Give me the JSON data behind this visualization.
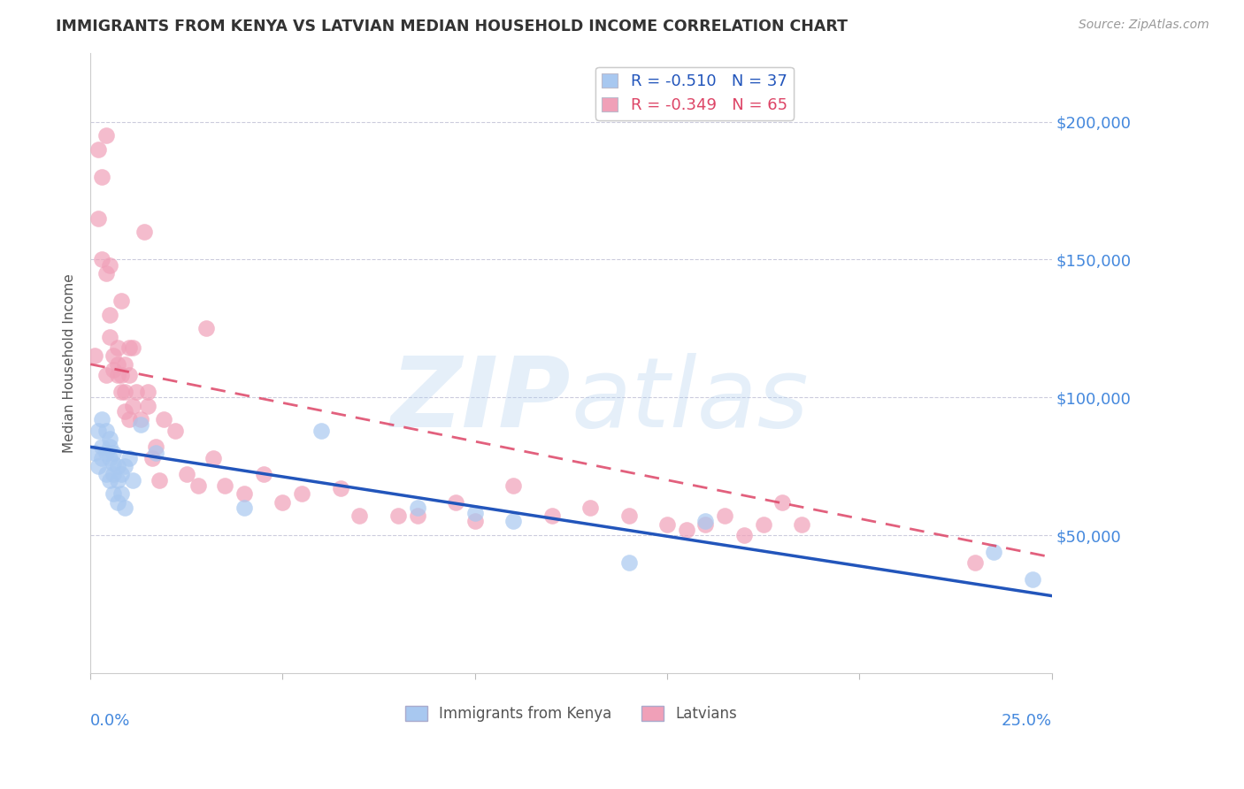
{
  "title": "IMMIGRANTS FROM KENYA VS LATVIAN MEDIAN HOUSEHOLD INCOME CORRELATION CHART",
  "source": "Source: ZipAtlas.com",
  "ylabel": "Median Household Income",
  "right_ytick_values": [
    50000,
    100000,
    150000,
    200000
  ],
  "watermark_zip": "ZIP",
  "watermark_atlas": "atlas",
  "legend_blue_r": "-0.510",
  "legend_blue_n": "37",
  "legend_pink_r": "-0.349",
  "legend_pink_n": "65",
  "legend_label_blue": "Immigrants from Kenya",
  "legend_label_pink": "Latvians",
  "blue_color": "#A8C8F0",
  "pink_color": "#F0A0B8",
  "trendline_blue_color": "#2255BB",
  "trendline_pink_color": "#DD4466",
  "background_color": "#FFFFFF",
  "grid_color": "#CCCCDD",
  "xlim": [
    0,
    0.25
  ],
  "ylim": [
    0,
    225000
  ],
  "blue_x": [
    0.001,
    0.002,
    0.002,
    0.003,
    0.003,
    0.003,
    0.004,
    0.004,
    0.004,
    0.005,
    0.005,
    0.005,
    0.005,
    0.006,
    0.006,
    0.006,
    0.006,
    0.007,
    0.007,
    0.007,
    0.008,
    0.008,
    0.009,
    0.009,
    0.01,
    0.011,
    0.013,
    0.017,
    0.04,
    0.06,
    0.085,
    0.1,
    0.11,
    0.14,
    0.16,
    0.235,
    0.245
  ],
  "blue_y": [
    80000,
    88000,
    75000,
    92000,
    82000,
    78000,
    88000,
    80000,
    72000,
    85000,
    78000,
    82000,
    70000,
    80000,
    76000,
    72000,
    65000,
    75000,
    70000,
    62000,
    72000,
    65000,
    75000,
    60000,
    78000,
    70000,
    90000,
    80000,
    60000,
    88000,
    60000,
    58000,
    55000,
    40000,
    55000,
    44000,
    34000
  ],
  "pink_x": [
    0.001,
    0.002,
    0.002,
    0.003,
    0.003,
    0.004,
    0.004,
    0.004,
    0.005,
    0.005,
    0.005,
    0.006,
    0.006,
    0.007,
    0.007,
    0.007,
    0.008,
    0.008,
    0.008,
    0.009,
    0.009,
    0.009,
    0.01,
    0.01,
    0.01,
    0.011,
    0.011,
    0.012,
    0.013,
    0.014,
    0.015,
    0.015,
    0.016,
    0.017,
    0.018,
    0.019,
    0.022,
    0.025,
    0.028,
    0.03,
    0.032,
    0.035,
    0.04,
    0.045,
    0.05,
    0.055,
    0.065,
    0.07,
    0.08,
    0.085,
    0.095,
    0.1,
    0.11,
    0.12,
    0.13,
    0.14,
    0.15,
    0.155,
    0.16,
    0.165,
    0.17,
    0.175,
    0.18,
    0.185,
    0.23
  ],
  "pink_y": [
    115000,
    190000,
    165000,
    180000,
    150000,
    145000,
    195000,
    108000,
    130000,
    148000,
    122000,
    115000,
    110000,
    108000,
    118000,
    112000,
    135000,
    108000,
    102000,
    95000,
    112000,
    102000,
    92000,
    118000,
    108000,
    118000,
    97000,
    102000,
    92000,
    160000,
    97000,
    102000,
    78000,
    82000,
    70000,
    92000,
    88000,
    72000,
    68000,
    125000,
    78000,
    68000,
    65000,
    72000,
    62000,
    65000,
    67000,
    57000,
    57000,
    57000,
    62000,
    55000,
    68000,
    57000,
    60000,
    57000,
    54000,
    52000,
    54000,
    57000,
    50000,
    54000,
    62000,
    54000,
    40000
  ],
  "trendline_blue_x0": 0.0,
  "trendline_blue_y0": 82000,
  "trendline_blue_x1": 0.25,
  "trendline_blue_y1": 28000,
  "trendline_pink_x0": 0.0,
  "trendline_pink_y0": 112000,
  "trendline_pink_x1": 0.25,
  "trendline_pink_y1": 42000
}
